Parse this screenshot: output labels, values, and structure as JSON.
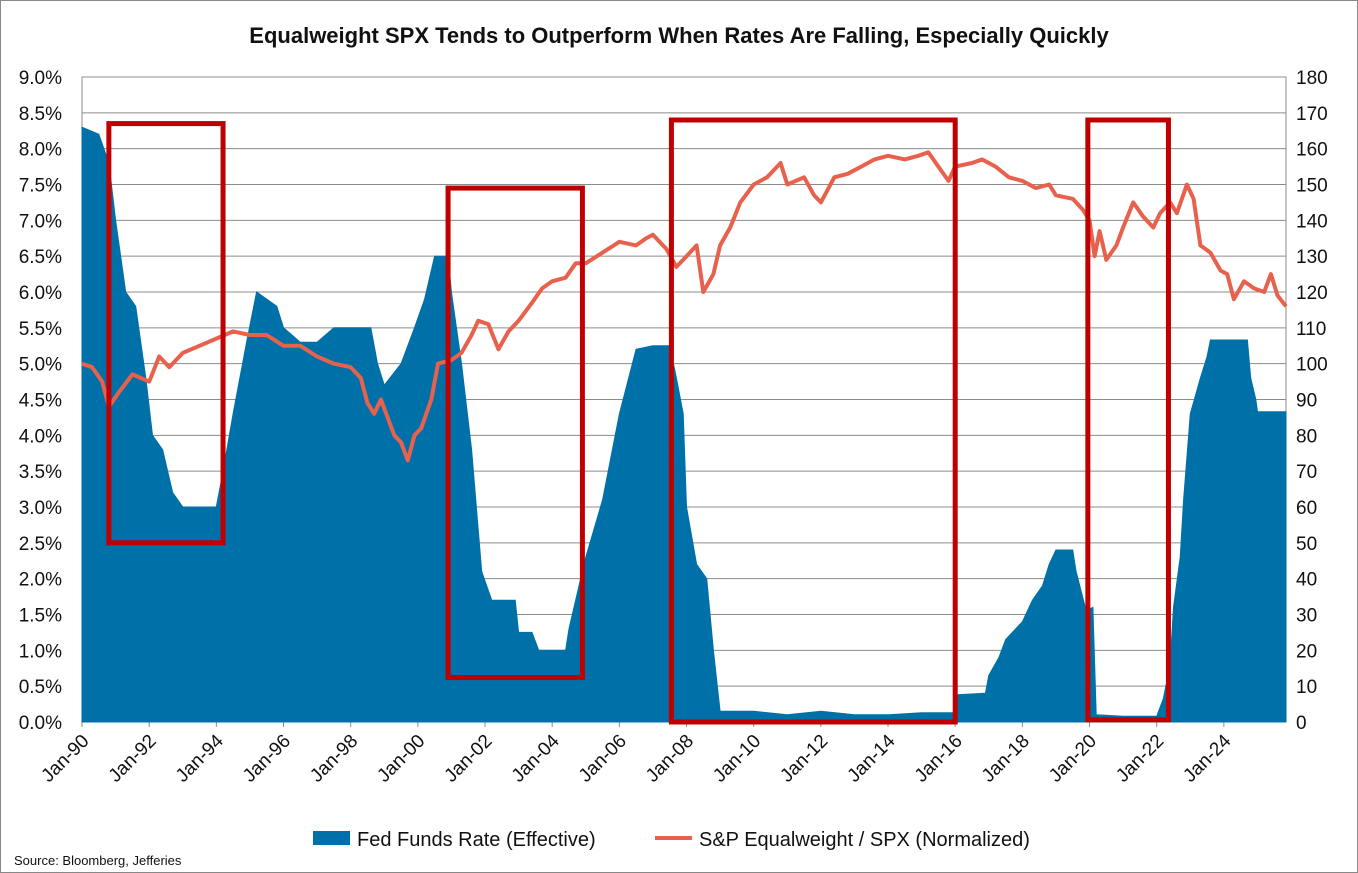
{
  "chart_data": {
    "type": "area+line",
    "title": "Equalweight SPX Tends to Outperform When Rates Are Falling, Especially Quickly",
    "source": "Source: Bloomberg, Jefferies",
    "y_left": {
      "min": 0,
      "max": 9,
      "step": 0.5,
      "ticks": [
        "0.0%",
        "0.5%",
        "1.0%",
        "1.5%",
        "2.0%",
        "2.5%",
        "3.0%",
        "3.5%",
        "4.0%",
        "4.5%",
        "5.0%",
        "5.5%",
        "6.0%",
        "6.5%",
        "7.0%",
        "7.5%",
        "8.0%",
        "8.5%",
        "9.0%"
      ]
    },
    "y_right": {
      "min": 0,
      "max": 180,
      "step": 10,
      "ticks": [
        "0",
        "10",
        "20",
        "30",
        "40",
        "50",
        "60",
        "70",
        "80",
        "90",
        "100",
        "110",
        "120",
        "130",
        "140",
        "150",
        "160",
        "170",
        "180"
      ]
    },
    "x_axis": {
      "start_year": 1990,
      "end_year": 2025.85,
      "ticks": [
        {
          "label": "Jan-90",
          "year": 1990
        },
        {
          "label": "Jan-92",
          "year": 1992
        },
        {
          "label": "Jan-94",
          "year": 1994
        },
        {
          "label": "Jan-96",
          "year": 1996
        },
        {
          "label": "Jan-98",
          "year": 1998
        },
        {
          "label": "Jan-00",
          "year": 2000
        },
        {
          "label": "Jan-02",
          "year": 2002
        },
        {
          "label": "Jan-04",
          "year": 2004
        },
        {
          "label": "Jan-06",
          "year": 2006
        },
        {
          "label": "Jan-08",
          "year": 2008
        },
        {
          "label": "Jan-10",
          "year": 2010
        },
        {
          "label": "Jan-12",
          "year": 2012
        },
        {
          "label": "Jan-14",
          "year": 2014
        },
        {
          "label": "Jan-16",
          "year": 2016
        },
        {
          "label": "Jan-18",
          "year": 2018
        },
        {
          "label": "Jan-20",
          "year": 2020
        },
        {
          "label": "Jan-22",
          "year": 2022
        },
        {
          "label": "Jan-24",
          "year": 2024
        }
      ]
    },
    "series": [
      {
        "name": "Fed Funds Rate (Effective)",
        "type": "area",
        "axis": "left",
        "color": "#0070A8",
        "points": [
          [
            1990.0,
            8.3
          ],
          [
            1990.5,
            8.2
          ],
          [
            1990.8,
            7.8
          ],
          [
            1991.0,
            7.0
          ],
          [
            1991.3,
            6.0
          ],
          [
            1991.6,
            5.8
          ],
          [
            1991.9,
            4.8
          ],
          [
            1992.1,
            4.0
          ],
          [
            1992.4,
            3.8
          ],
          [
            1992.7,
            3.2
          ],
          [
            1993.0,
            3.0
          ],
          [
            1993.5,
            3.0
          ],
          [
            1994.0,
            3.0
          ],
          [
            1994.2,
            3.5
          ],
          [
            1994.5,
            4.3
          ],
          [
            1994.9,
            5.3
          ],
          [
            1995.2,
            6.0
          ],
          [
            1995.5,
            5.9
          ],
          [
            1995.8,
            5.8
          ],
          [
            1996.0,
            5.5
          ],
          [
            1996.5,
            5.3
          ],
          [
            1997.0,
            5.3
          ],
          [
            1997.5,
            5.5
          ],
          [
            1998.0,
            5.5
          ],
          [
            1998.6,
            5.5
          ],
          [
            1998.8,
            5.0
          ],
          [
            1999.0,
            4.7
          ],
          [
            1999.5,
            5.0
          ],
          [
            1999.9,
            5.5
          ],
          [
            2000.2,
            5.9
          ],
          [
            2000.5,
            6.5
          ],
          [
            2000.9,
            6.5
          ],
          [
            2001.0,
            6.0
          ],
          [
            2001.3,
            5.0
          ],
          [
            2001.6,
            3.8
          ],
          [
            2001.9,
            2.1
          ],
          [
            2002.2,
            1.7
          ],
          [
            2002.5,
            1.7
          ],
          [
            2002.9,
            1.7
          ],
          [
            2003.0,
            1.25
          ],
          [
            2003.4,
            1.25
          ],
          [
            2003.6,
            1.0
          ],
          [
            2004.0,
            1.0
          ],
          [
            2004.4,
            1.0
          ],
          [
            2004.5,
            1.3
          ],
          [
            2004.8,
            1.9
          ],
          [
            2005.0,
            2.3
          ],
          [
            2005.5,
            3.1
          ],
          [
            2006.0,
            4.3
          ],
          [
            2006.5,
            5.2
          ],
          [
            2007.0,
            5.25
          ],
          [
            2007.5,
            5.25
          ],
          [
            2007.7,
            4.8
          ],
          [
            2007.9,
            4.3
          ],
          [
            2008.0,
            3.0
          ],
          [
            2008.3,
            2.2
          ],
          [
            2008.6,
            2.0
          ],
          [
            2008.8,
            1.0
          ],
          [
            2009.0,
            0.15
          ],
          [
            2010.0,
            0.15
          ],
          [
            2011.0,
            0.1
          ],
          [
            2012.0,
            0.15
          ],
          [
            2013.0,
            0.1
          ],
          [
            2014.0,
            0.1
          ],
          [
            2015.0,
            0.13
          ],
          [
            2015.95,
            0.13
          ],
          [
            2016.0,
            0.38
          ],
          [
            2016.9,
            0.4
          ],
          [
            2017.0,
            0.65
          ],
          [
            2017.3,
            0.9
          ],
          [
            2017.5,
            1.15
          ],
          [
            2018.0,
            1.4
          ],
          [
            2018.3,
            1.7
          ],
          [
            2018.6,
            1.9
          ],
          [
            2018.8,
            2.2
          ],
          [
            2019.0,
            2.4
          ],
          [
            2019.5,
            2.4
          ],
          [
            2019.6,
            2.1
          ],
          [
            2019.9,
            1.55
          ],
          [
            2020.1,
            1.6
          ],
          [
            2020.2,
            0.1
          ],
          [
            2021.0,
            0.08
          ],
          [
            2022.0,
            0.08
          ],
          [
            2022.2,
            0.33
          ],
          [
            2022.4,
            0.8
          ],
          [
            2022.5,
            1.6
          ],
          [
            2022.7,
            2.3
          ],
          [
            2022.8,
            3.1
          ],
          [
            2023.0,
            4.3
          ],
          [
            2023.3,
            4.8
          ],
          [
            2023.5,
            5.1
          ],
          [
            2023.6,
            5.33
          ],
          [
            2024.7,
            5.33
          ],
          [
            2024.8,
            4.8
          ],
          [
            2024.95,
            4.5
          ],
          [
            2025.0,
            4.33
          ],
          [
            2025.85,
            4.33
          ]
        ]
      },
      {
        "name": "S&P Equalweight / SPX (Normalized)",
        "type": "line",
        "axis": "right",
        "color": "#E8614C",
        "points": [
          [
            1990.0,
            100
          ],
          [
            1990.3,
            99
          ],
          [
            1990.6,
            95
          ],
          [
            1990.8,
            88
          ],
          [
            1991.1,
            92
          ],
          [
            1991.5,
            97
          ],
          [
            1992.0,
            95
          ],
          [
            1992.3,
            102
          ],
          [
            1992.6,
            99
          ],
          [
            1993.0,
            103
          ],
          [
            1993.5,
            105
          ],
          [
            1994.0,
            107
          ],
          [
            1994.5,
            109
          ],
          [
            1995.0,
            108
          ],
          [
            1995.5,
            108
          ],
          [
            1996.0,
            105
          ],
          [
            1996.5,
            105
          ],
          [
            1997.0,
            102
          ],
          [
            1997.5,
            100
          ],
          [
            1998.0,
            99
          ],
          [
            1998.3,
            96
          ],
          [
            1998.5,
            89
          ],
          [
            1998.7,
            86
          ],
          [
            1998.9,
            90
          ],
          [
            1999.1,
            85
          ],
          [
            1999.3,
            80
          ],
          [
            1999.5,
            78
          ],
          [
            1999.7,
            73
          ],
          [
            1999.9,
            80
          ],
          [
            2000.1,
            82
          ],
          [
            2000.4,
            90
          ],
          [
            2000.6,
            100
          ],
          [
            2001.0,
            101
          ],
          [
            2001.3,
            103
          ],
          [
            2001.6,
            108
          ],
          [
            2001.8,
            112
          ],
          [
            2002.1,
            111
          ],
          [
            2002.4,
            104
          ],
          [
            2002.7,
            109
          ],
          [
            2003.0,
            112
          ],
          [
            2003.4,
            117
          ],
          [
            2003.7,
            121
          ],
          [
            2004.0,
            123
          ],
          [
            2004.4,
            124
          ],
          [
            2004.7,
            128
          ],
          [
            2005.0,
            128
          ],
          [
            2005.5,
            131
          ],
          [
            2006.0,
            134
          ],
          [
            2006.5,
            133
          ],
          [
            2006.8,
            135
          ],
          [
            2007.0,
            136
          ],
          [
            2007.4,
            132
          ],
          [
            2007.7,
            127
          ],
          [
            2008.0,
            130
          ],
          [
            2008.3,
            133
          ],
          [
            2008.5,
            120
          ],
          [
            2008.8,
            125
          ],
          [
            2009.0,
            133
          ],
          [
            2009.3,
            138
          ],
          [
            2009.6,
            145
          ],
          [
            2010.0,
            150
          ],
          [
            2010.4,
            152
          ],
          [
            2010.8,
            156
          ],
          [
            2011.0,
            150
          ],
          [
            2011.5,
            152
          ],
          [
            2011.8,
            147
          ],
          [
            2012.0,
            145
          ],
          [
            2012.4,
            152
          ],
          [
            2012.8,
            153
          ],
          [
            2013.2,
            155
          ],
          [
            2013.6,
            157
          ],
          [
            2014.0,
            158
          ],
          [
            2014.5,
            157
          ],
          [
            2014.9,
            158
          ],
          [
            2015.2,
            159
          ],
          [
            2015.5,
            155
          ],
          [
            2015.8,
            151
          ],
          [
            2016.0,
            155
          ],
          [
            2016.5,
            156
          ],
          [
            2016.8,
            157
          ],
          [
            2017.2,
            155
          ],
          [
            2017.6,
            152
          ],
          [
            2018.0,
            151
          ],
          [
            2018.4,
            149
          ],
          [
            2018.8,
            150
          ],
          [
            2019.0,
            147
          ],
          [
            2019.5,
            146
          ],
          [
            2019.8,
            143
          ],
          [
            2020.0,
            140
          ],
          [
            2020.15,
            130
          ],
          [
            2020.3,
            137
          ],
          [
            2020.5,
            129
          ],
          [
            2020.8,
            133
          ],
          [
            2021.0,
            138
          ],
          [
            2021.3,
            145
          ],
          [
            2021.6,
            141
          ],
          [
            2021.9,
            138
          ],
          [
            2022.1,
            142
          ],
          [
            2022.4,
            145
          ],
          [
            2022.6,
            142
          ],
          [
            2022.9,
            150
          ],
          [
            2023.1,
            146
          ],
          [
            2023.3,
            133
          ],
          [
            2023.6,
            131
          ],
          [
            2023.9,
            126
          ],
          [
            2024.1,
            125
          ],
          [
            2024.3,
            118
          ],
          [
            2024.6,
            123
          ],
          [
            2024.9,
            121
          ],
          [
            2025.2,
            120
          ],
          [
            2025.4,
            125
          ],
          [
            2025.6,
            119
          ],
          [
            2025.85,
            116
          ]
        ]
      }
    ],
    "highlight_boxes": [
      {
        "x_start": 1990.8,
        "x_end": 1994.2,
        "y_low": 2.5,
        "y_high": 8.35
      },
      {
        "x_start": 2000.9,
        "x_end": 2004.9,
        "y_low": 0.62,
        "y_high": 7.45
      },
      {
        "x_start": 2007.55,
        "x_end": 2016.0,
        "y_low": 0.0,
        "y_high": 8.4
      },
      {
        "x_start": 2019.95,
        "x_end": 2022.35,
        "y_low": 0.03,
        "y_high": 8.4
      }
    ],
    "legend": {
      "position": "bottom",
      "items": [
        "Fed Funds Rate (Effective)",
        "S&P Equalweight / SPX (Normalized)"
      ]
    }
  }
}
